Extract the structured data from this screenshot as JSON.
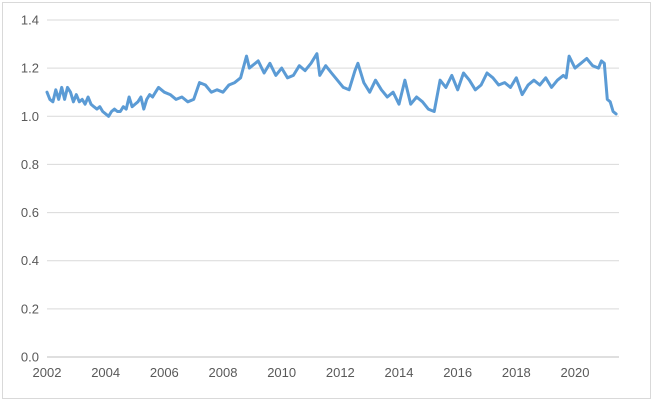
{
  "chart_data": {
    "type": "line",
    "title": "",
    "xlabel": "",
    "ylabel": "",
    "grid": "horizontal",
    "legend": "none",
    "xlim": [
      2002,
      2021.5
    ],
    "ylim": [
      0,
      1.4
    ],
    "x_ticks": [
      2002,
      2004,
      2006,
      2008,
      2010,
      2012,
      2014,
      2016,
      2018,
      2020
    ],
    "x_tick_labels": [
      "2002",
      "2004",
      "2006",
      "2008",
      "2010",
      "2012",
      "2014",
      "2016",
      "2018",
      "2020"
    ],
    "y_ticks": [
      0,
      0.2,
      0.4,
      0.6,
      0.8,
      1.0,
      1.2,
      1.4
    ],
    "y_tick_labels": [
      "0.0",
      "0.2",
      "0.4",
      "0.6",
      "0.8",
      "1.0",
      "1.2",
      "1.4"
    ],
    "series": [
      {
        "color": "#5b9bd5",
        "x": [
          2002.0,
          2002.1,
          2002.2,
          2002.3,
          2002.4,
          2002.5,
          2002.6,
          2002.7,
          2002.8,
          2002.9,
          2003.0,
          2003.1,
          2003.2,
          2003.3,
          2003.4,
          2003.5,
          2003.6,
          2003.7,
          2003.8,
          2003.9,
          2004.0,
          2004.1,
          2004.2,
          2004.3,
          2004.4,
          2004.5,
          2004.6,
          2004.7,
          2004.8,
          2004.9,
          2005.0,
          2005.1,
          2005.2,
          2005.3,
          2005.4,
          2005.5,
          2005.6,
          2005.7,
          2005.8,
          2005.9,
          2006.0,
          2006.2,
          2006.4,
          2006.6,
          2006.8,
          2007.0,
          2007.2,
          2007.4,
          2007.6,
          2007.8,
          2008.0,
          2008.2,
          2008.4,
          2008.6,
          2008.8,
          2008.9,
          2009.0,
          2009.2,
          2009.4,
          2009.6,
          2009.8,
          2010.0,
          2010.2,
          2010.4,
          2010.6,
          2010.8,
          2011.0,
          2011.2,
          2011.3,
          2011.5,
          2011.7,
          2011.9,
          2012.1,
          2012.3,
          2012.5,
          2012.6,
          2012.8,
          2013.0,
          2013.2,
          2013.4,
          2013.6,
          2013.8,
          2014.0,
          2014.2,
          2014.4,
          2014.6,
          2014.8,
          2015.0,
          2015.2,
          2015.4,
          2015.6,
          2015.8,
          2016.0,
          2016.2,
          2016.4,
          2016.6,
          2016.8,
          2017.0,
          2017.2,
          2017.4,
          2017.6,
          2017.8,
          2018.0,
          2018.2,
          2018.4,
          2018.6,
          2018.8,
          2019.0,
          2019.2,
          2019.4,
          2019.6,
          2019.7,
          2019.8,
          2020.0,
          2020.2,
          2020.4,
          2020.6,
          2020.8,
          2020.9,
          2021.0,
          2021.1,
          2021.2,
          2021.3,
          2021.4
        ],
        "y": [
          1.1,
          1.07,
          1.06,
          1.11,
          1.07,
          1.12,
          1.07,
          1.12,
          1.1,
          1.06,
          1.09,
          1.06,
          1.07,
          1.05,
          1.08,
          1.05,
          1.04,
          1.03,
          1.04,
          1.02,
          1.01,
          1.0,
          1.02,
          1.03,
          1.02,
          1.02,
          1.04,
          1.03,
          1.08,
          1.04,
          1.05,
          1.06,
          1.08,
          1.03,
          1.07,
          1.09,
          1.08,
          1.1,
          1.12,
          1.11,
          1.1,
          1.09,
          1.07,
          1.08,
          1.06,
          1.07,
          1.14,
          1.13,
          1.1,
          1.11,
          1.1,
          1.13,
          1.14,
          1.16,
          1.25,
          1.2,
          1.21,
          1.23,
          1.18,
          1.22,
          1.17,
          1.2,
          1.16,
          1.17,
          1.21,
          1.19,
          1.22,
          1.26,
          1.17,
          1.21,
          1.18,
          1.15,
          1.12,
          1.11,
          1.19,
          1.22,
          1.14,
          1.1,
          1.15,
          1.11,
          1.08,
          1.1,
          1.05,
          1.15,
          1.05,
          1.08,
          1.06,
          1.03,
          1.02,
          1.15,
          1.12,
          1.17,
          1.11,
          1.18,
          1.15,
          1.11,
          1.13,
          1.18,
          1.16,
          1.13,
          1.14,
          1.12,
          1.16,
          1.09,
          1.13,
          1.15,
          1.13,
          1.16,
          1.12,
          1.15,
          1.17,
          1.16,
          1.25,
          1.2,
          1.22,
          1.24,
          1.21,
          1.2,
          1.23,
          1.22,
          1.07,
          1.06,
          1.02,
          1.01
        ]
      }
    ]
  }
}
